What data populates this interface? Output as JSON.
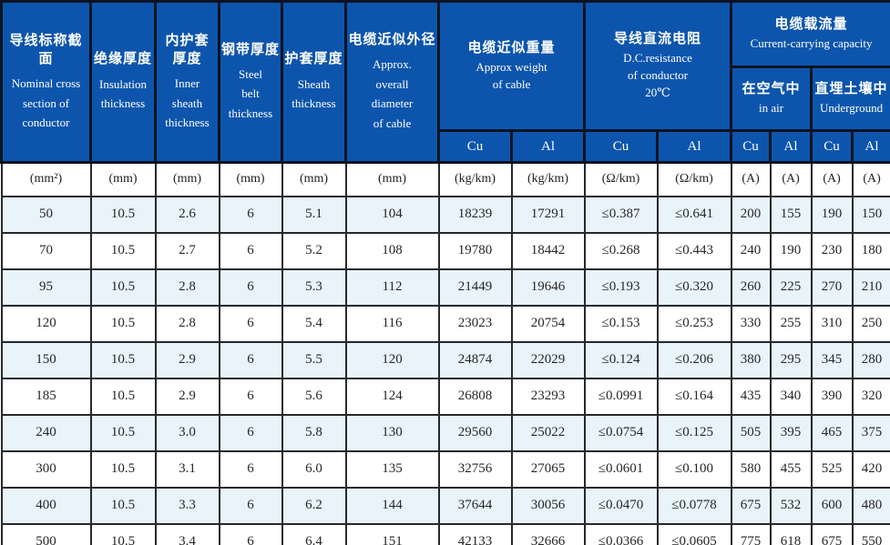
{
  "colors": {
    "header_blue": "#0d55ac",
    "row_alt_blue": "#e8f3fa",
    "row_white": "#ffffff",
    "border_dark": "#26292c",
    "header_border": "#0b1322",
    "header_text": "#ffffff",
    "body_text": "#262626"
  },
  "header": {
    "nominal": {
      "zh": "导线标称截面",
      "en": "Nominal  cross\nsection of\nconductor"
    },
    "insulation": {
      "zh": "绝缘厚度",
      "en": "Insulation\nthickness"
    },
    "inner_sheath": {
      "zh": "内护套\n厚度",
      "en": "Inner\nsheath\nthickness"
    },
    "steel_belt": {
      "zh": "钢带厚度",
      "en": "Steel\nbelt\nthickness"
    },
    "sheath": {
      "zh": "护套厚度",
      "en": "Sheath\nthickness"
    },
    "diameter": {
      "zh": "电缆近似外径",
      "en": "Approx.\noverall\ndiameter\nof cable"
    },
    "weight": {
      "zh": "电缆近似重量",
      "en": "Approx weight\nof cable"
    },
    "resistance": {
      "zh": "导线直流电阻",
      "en": "D.C.resistance\nof conductor\n20℃"
    },
    "capacity": {
      "zh": "电缆载流量",
      "en": "Current-carrying capacity"
    },
    "in_air": {
      "zh": "在空气中",
      "en": "in air"
    },
    "underground": {
      "zh": "直埋土壤中",
      "en": "Underground"
    },
    "cu": "Cu",
    "al": "Al"
  },
  "units": [
    "(mm²)",
    "(mm)",
    "(mm)",
    "(mm)",
    "(mm)",
    "(mm)",
    "(kg/km)",
    "(kg/km)",
    "(Ω/km)",
    "(Ω/km)",
    "(A)",
    "(A)",
    "(A)",
    "(A)"
  ],
  "rows": [
    [
      "50",
      "10.5",
      "2.6",
      "6",
      "5.1",
      "104",
      "18239",
      "17291",
      "≤0.387",
      "≤0.641",
      "200",
      "155",
      "190",
      "150"
    ],
    [
      "70",
      "10.5",
      "2.7",
      "6",
      "5.2",
      "108",
      "19780",
      "18442",
      "≤0.268",
      "≤0.443",
      "240",
      "190",
      "230",
      "180"
    ],
    [
      "95",
      "10.5",
      "2.8",
      "6",
      "5.3",
      "112",
      "21449",
      "19646",
      "≤0.193",
      "≤0.320",
      "260",
      "225",
      "270",
      "210"
    ],
    [
      "120",
      "10.5",
      "2.8",
      "6",
      "5.4",
      "116",
      "23023",
      "20754",
      "≤0.153",
      "≤0.253",
      "330",
      "255",
      "310",
      "250"
    ],
    [
      "150",
      "10.5",
      "2.9",
      "6",
      "5.5",
      "120",
      "24874",
      "22029",
      "≤0.124",
      "≤0.206",
      "380",
      "295",
      "345",
      "280"
    ],
    [
      "185",
      "10.5",
      "2.9",
      "6",
      "5.6",
      "124",
      "26808",
      "23293",
      "≤0.0991",
      "≤0.164",
      "435",
      "340",
      "390",
      "320"
    ],
    [
      "240",
      "10.5",
      "3.0",
      "6",
      "5.8",
      "130",
      "29560",
      "25022",
      "≤0.0754",
      "≤0.125",
      "505",
      "395",
      "465",
      "375"
    ],
    [
      "300",
      "10.5",
      "3.1",
      "6",
      "6.0",
      "135",
      "32756",
      "27065",
      "≤0.0601",
      "≤0.100",
      "580",
      "455",
      "525",
      "420"
    ],
    [
      "400",
      "10.5",
      "3.3",
      "6",
      "6.2",
      "144",
      "37644",
      "30056",
      "≤0.0470",
      "≤0.0778",
      "675",
      "532",
      "600",
      "480"
    ],
    [
      "500",
      "10.5",
      "3.4",
      "6",
      "6.4",
      "151",
      "42133",
      "32666",
      "≤0.0366",
      "≤0.0605",
      "775",
      "618",
      "675",
      "550"
    ]
  ]
}
